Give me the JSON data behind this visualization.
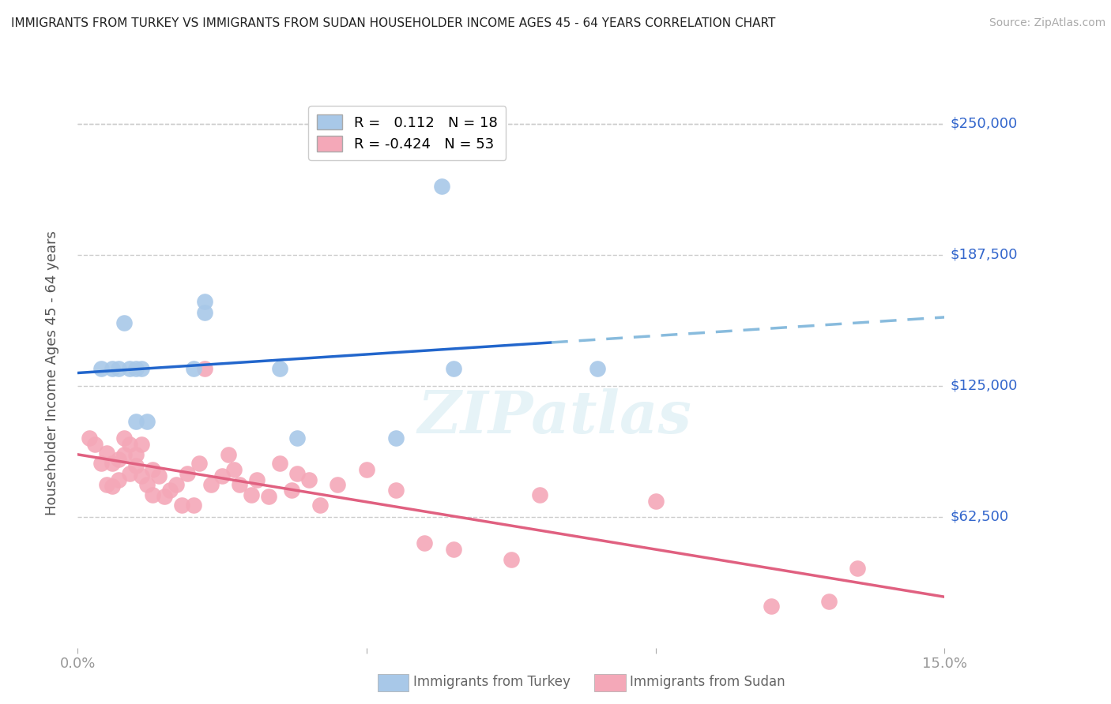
{
  "title": "IMMIGRANTS FROM TURKEY VS IMMIGRANTS FROM SUDAN HOUSEHOLDER INCOME AGES 45 - 64 YEARS CORRELATION CHART",
  "source": "Source: ZipAtlas.com",
  "ylabel": "Householder Income Ages 45 - 64 years",
  "ytick_values": [
    250000,
    187500,
    125000,
    62500
  ],
  "ylim": [
    0,
    262000
  ],
  "xlim": [
    0.0,
    0.15
  ],
  "turkey_color": "#a8c8e8",
  "sudan_color": "#f4a8b8",
  "turkey_line_color": "#2266cc",
  "turkey_dash_color": "#88bbdd",
  "sudan_line_color": "#e06080",
  "legend_turkey_r": "0.112",
  "legend_turkey_n": "18",
  "legend_sudan_r": "-0.424",
  "legend_sudan_n": "53",
  "watermark": "ZIPatlas",
  "background_color": "#ffffff",
  "grid_color": "#cccccc",
  "ytick_color": "#3366cc",
  "xtick_color": "#999999",
  "turkey_scatter_x": [
    0.004,
    0.006,
    0.007,
    0.008,
    0.009,
    0.01,
    0.01,
    0.011,
    0.012,
    0.02,
    0.022,
    0.022,
    0.035,
    0.038,
    0.055,
    0.063,
    0.065,
    0.09
  ],
  "turkey_scatter_y": [
    133000,
    133000,
    133000,
    155000,
    133000,
    133000,
    108000,
    133000,
    108000,
    133000,
    165000,
    160000,
    133000,
    100000,
    100000,
    220000,
    133000,
    133000
  ],
  "sudan_scatter_x": [
    0.002,
    0.003,
    0.004,
    0.005,
    0.005,
    0.006,
    0.006,
    0.007,
    0.007,
    0.008,
    0.008,
    0.009,
    0.009,
    0.01,
    0.01,
    0.011,
    0.011,
    0.012,
    0.013,
    0.013,
    0.014,
    0.015,
    0.016,
    0.017,
    0.018,
    0.019,
    0.02,
    0.021,
    0.022,
    0.023,
    0.025,
    0.026,
    0.027,
    0.028,
    0.03,
    0.031,
    0.033,
    0.035,
    0.037,
    0.038,
    0.04,
    0.042,
    0.045,
    0.05,
    0.055,
    0.06,
    0.065,
    0.075,
    0.08,
    0.1,
    0.12,
    0.13,
    0.135
  ],
  "sudan_scatter_y": [
    100000,
    97000,
    88000,
    93000,
    78000,
    88000,
    77000,
    90000,
    80000,
    100000,
    92000,
    97000,
    83000,
    92000,
    87000,
    97000,
    82000,
    78000,
    73000,
    85000,
    82000,
    72000,
    75000,
    78000,
    68000,
    83000,
    68000,
    88000,
    133000,
    78000,
    82000,
    92000,
    85000,
    78000,
    73000,
    80000,
    72000,
    88000,
    75000,
    83000,
    80000,
    68000,
    78000,
    85000,
    75000,
    50000,
    47000,
    42000,
    73000,
    70000,
    20000,
    22000,
    38000
  ]
}
